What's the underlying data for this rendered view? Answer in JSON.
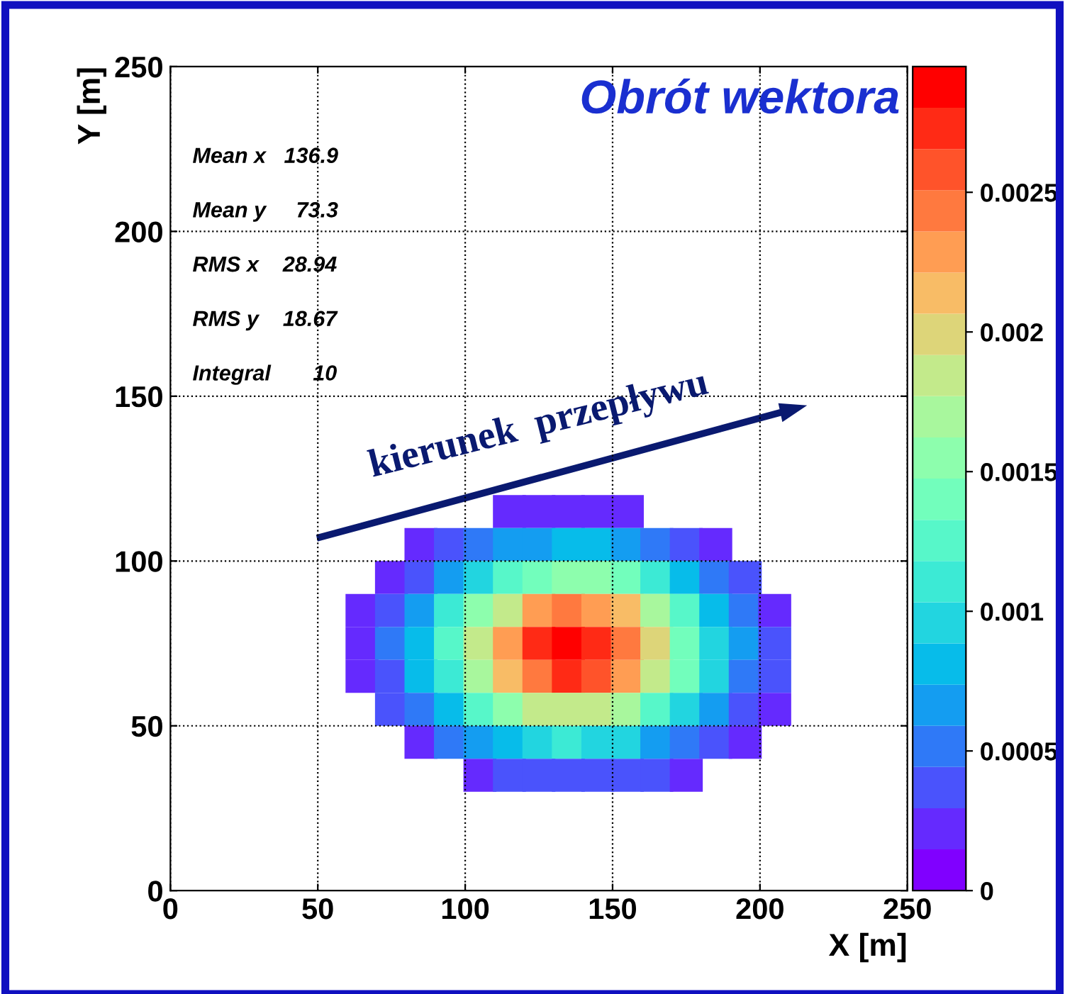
{
  "chart_data": {
    "type": "scatter",
    "title": "Obrót wektora",
    "xlabel": "X [m]",
    "ylabel": "Y [m]",
    "marker": "square",
    "xlim": [
      0,
      250
    ],
    "ylim": [
      0,
      250
    ],
    "xticks": [
      0,
      50,
      100,
      150,
      200,
      250
    ],
    "yticks": [
      0,
      50,
      100,
      150,
      200,
      250
    ],
    "clim": [
      0,
      0.00295
    ],
    "cticks": [
      0,
      0.0005,
      0.001,
      0.0015,
      0.002,
      0.0025
    ],
    "grid": true,
    "annotations": [
      "Mean x   136.9",
      "Mean y     73.3",
      "RMS x    28.94",
      "RMS y    18.67",
      "Integral       10",
      "kierunek  przepływu"
    ],
    "x": [
      115,
      125,
      135,
      145,
      155,
      85,
      95,
      105,
      115,
      125,
      135,
      145,
      155,
      165,
      175,
      185,
      75,
      85,
      95,
      105,
      115,
      125,
      135,
      145,
      155,
      165,
      175,
      185,
      195,
      65,
      75,
      85,
      95,
      105,
      115,
      125,
      135,
      145,
      155,
      165,
      175,
      185,
      195,
      205,
      65,
      75,
      85,
      95,
      105,
      115,
      125,
      135,
      145,
      155,
      165,
      175,
      185,
      195,
      205,
      65,
      75,
      85,
      95,
      105,
      115,
      125,
      135,
      145,
      155,
      165,
      175,
      185,
      195,
      205,
      75,
      85,
      95,
      105,
      115,
      125,
      135,
      145,
      155,
      165,
      175,
      185,
      195,
      205,
      85,
      95,
      105,
      115,
      125,
      135,
      145,
      155,
      165,
      175,
      185,
      195,
      105,
      115,
      125,
      135,
      145,
      155,
      165,
      175
    ],
    "values": [
      115,
      115,
      115,
      115,
      115,
      105,
      105,
      105,
      105,
      105,
      105,
      105,
      105,
      105,
      105,
      105,
      95,
      95,
      95,
      95,
      95,
      95,
      95,
      95,
      95,
      95,
      95,
      95,
      95,
      85,
      85,
      85,
      85,
      85,
      85,
      85,
      85,
      85,
      85,
      85,
      85,
      85,
      85,
      85,
      75,
      75,
      75,
      75,
      75,
      75,
      75,
      75,
      75,
      75,
      75,
      75,
      75,
      75,
      75,
      65,
      65,
      65,
      65,
      65,
      65,
      65,
      65,
      65,
      65,
      65,
      65,
      65,
      65,
      65,
      55,
      55,
      55,
      55,
      55,
      55,
      55,
      55,
      55,
      55,
      55,
      55,
      55,
      55,
      45,
      45,
      45,
      45,
      45,
      45,
      45,
      45,
      45,
      45,
      45,
      45,
      35,
      35,
      35,
      35,
      35,
      35,
      35,
      35
    ],
    "cvalues": [
      0.00023,
      0.00027,
      0.00029,
      0.00028,
      0.00025,
      0.00021,
      0.00033,
      0.00047,
      0.00061,
      0.00071,
      0.00076,
      0.00074,
      0.00066,
      0.00053,
      0.00039,
      0.00026,
      0.00025,
      0.00043,
      0.00067,
      0.00096,
      0.00123,
      0.00144,
      0.00154,
      0.0015,
      0.00133,
      0.00107,
      0.00078,
      0.00052,
      0.00032,
      0.00021,
      0.00039,
      0.00068,
      0.00105,
      0.00149,
      0.00191,
      0.00225,
      0.0024,
      0.00233,
      0.00207,
      0.00166,
      0.00122,
      0.00081,
      0.00049,
      0.00027,
      0.00025,
      0.00047,
      0.00081,
      0.00126,
      0.00178,
      0.0023,
      0.0027,
      0.00288,
      0.0028,
      0.00248,
      0.00199,
      0.00146,
      0.00098,
      0.00059,
      0.00033,
      0.00023,
      0.00044,
      0.00075,
      0.00116,
      0.00165,
      0.00212,
      0.00249,
      0.00266,
      0.00259,
      0.00229,
      0.00184,
      0.00135,
      0.0009,
      0.00055,
      0.0003,
      0.00031,
      0.00053,
      0.00083,
      0.00118,
      0.00151,
      0.00178,
      0.0019,
      0.00184,
      0.00163,
      0.00131,
      0.00096,
      0.00064,
      0.00039,
      0.00021,
      0.00029,
      0.00046,
      0.00065,
      0.00083,
      0.00098,
      0.00104,
      0.00102,
      0.0009,
      0.00072,
      0.00053,
      0.00035,
      0.00021,
      0.00027,
      0.00035,
      0.00041,
      0.00044,
      0.00043,
      0.00038,
      0.00031,
      0.00023
    ]
  }
}
